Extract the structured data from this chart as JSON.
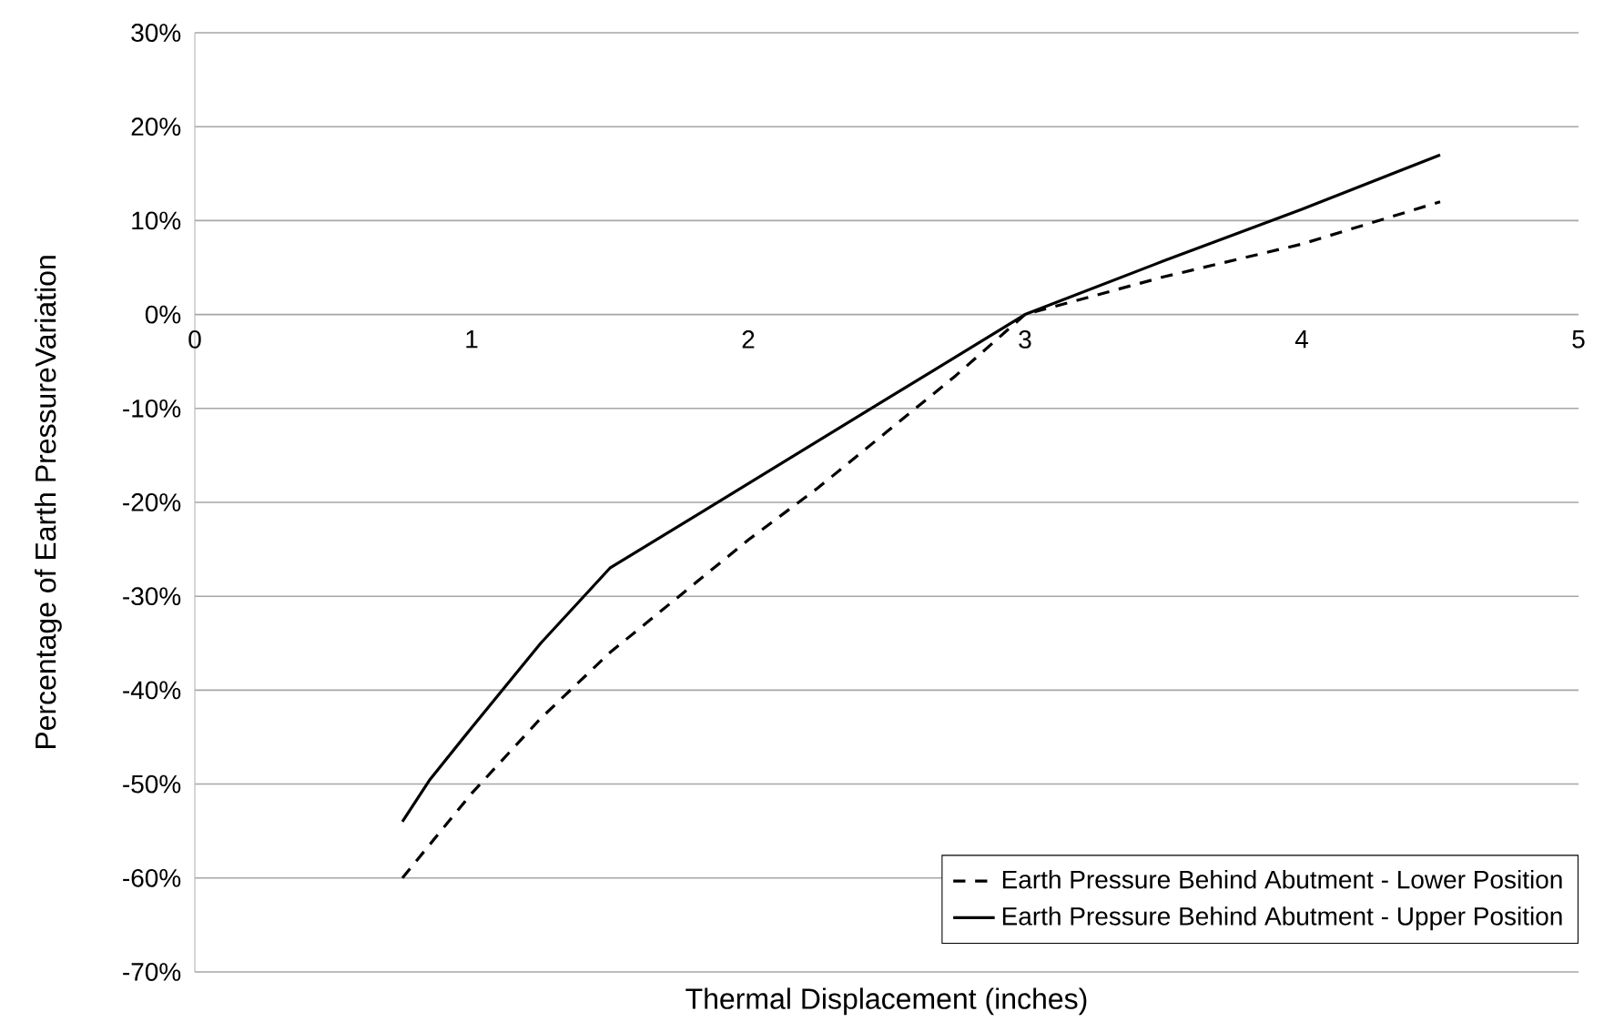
{
  "chart_data": {
    "type": "line",
    "xlabel": "Thermal Displacement (inches)",
    "ylabel": "Percentage of Earth PressureVariation",
    "xlim": [
      0,
      5
    ],
    "xticks": [
      0,
      1,
      2,
      3,
      4,
      5
    ],
    "ylim": [
      -70,
      30
    ],
    "yticks": [
      {
        "value": -70,
        "label": "-70%"
      },
      {
        "value": -60,
        "label": "-60%"
      },
      {
        "value": -50,
        "label": "-50%"
      },
      {
        "value": -40,
        "label": "-40%"
      },
      {
        "value": -30,
        "label": "-30%"
      },
      {
        "value": -20,
        "label": "-20%"
      },
      {
        "value": -10,
        "label": "-10%"
      },
      {
        "value": 0,
        "label": "0%"
      },
      {
        "value": 10,
        "label": "10%"
      },
      {
        "value": 20,
        "label": "20%"
      },
      {
        "value": 30,
        "label": "30%"
      }
    ],
    "grid": "y",
    "legend": "bottom right",
    "marker": "none",
    "series": [
      {
        "name": "Earth Pressure Behind Abutment - Lower Position",
        "color": "#000000",
        "line_style": "dashed",
        "x": [
          0.75,
          1,
          1.25,
          1.5,
          1.75,
          2,
          2.25,
          2.5,
          2.75,
          3,
          3.5,
          4,
          4.5
        ],
        "values": [
          -60,
          -51,
          -43,
          -36,
          -30,
          -24,
          -18.5,
          -12.5,
          -6.5,
          0,
          4,
          7.5,
          12
        ]
      },
      {
        "name": "Earth Pressure Behind Abutment - Upper Position",
        "color": "#000000",
        "line_style": "solid",
        "x": [
          0.75,
          0.85,
          1,
          1.25,
          1.5,
          2,
          2.5,
          3,
          3.5,
          4,
          4.5
        ],
        "values": [
          -54,
          -49.5,
          -44,
          -35,
          -27,
          -18,
          -9,
          0,
          5.7,
          11.2,
          17
        ]
      }
    ]
  }
}
